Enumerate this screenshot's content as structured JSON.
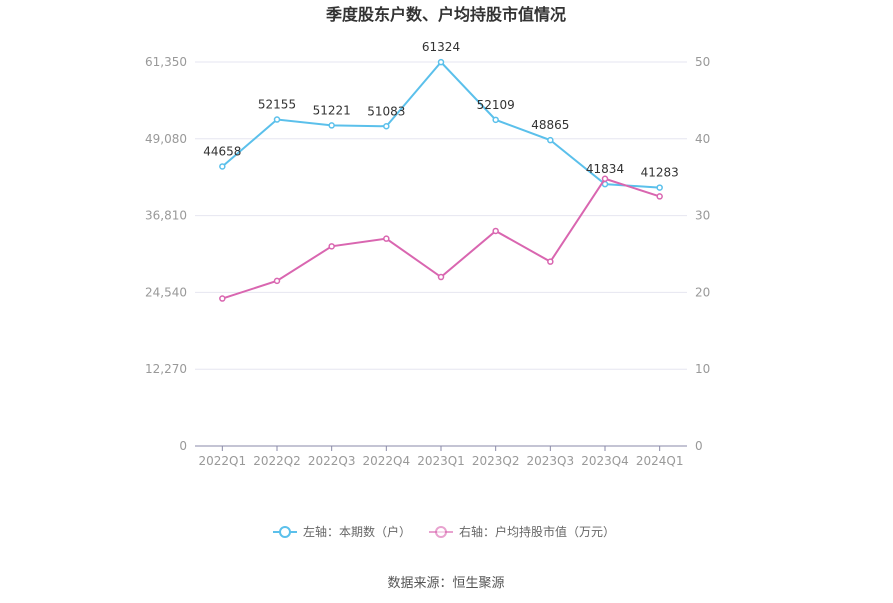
{
  "chart_data": {
    "type": "line",
    "title": "季度股东户数、户均持股市值情况",
    "categories": [
      "2022Q1",
      "2022Q2",
      "2022Q3",
      "2022Q4",
      "2023Q1",
      "2023Q2",
      "2023Q3",
      "2023Q4",
      "2024Q1"
    ],
    "series": [
      {
        "name": "左轴：本期数（户）",
        "axis": "left",
        "color": "#5bc0eb",
        "values": [
          44658,
          52155,
          51221,
          51083,
          61324,
          52109,
          48865,
          41834,
          41283
        ],
        "labels": [
          "44658",
          "52155",
          "51221",
          "51083",
          "61324",
          "52109",
          "48865",
          "41834",
          "41283"
        ]
      },
      {
        "name": "右轴：户均持股市值（万元）",
        "axis": "right",
        "color": "#d966b0",
        "values": [
          19.2,
          21.5,
          26.0,
          27.0,
          22.0,
          28.0,
          24.0,
          34.8,
          32.5
        ]
      }
    ],
    "y_left": {
      "min": 0,
      "max": 61350,
      "ticks": [
        0,
        12270,
        24540,
        36810,
        49080,
        61350
      ],
      "tick_labels": [
        "0",
        "12,270",
        "24,540",
        "36,810",
        "49,080",
        "61,350"
      ]
    },
    "y_right": {
      "min": 0,
      "max": 50,
      "ticks": [
        0,
        10,
        20,
        30,
        40,
        50
      ],
      "tick_labels": [
        "0",
        "10",
        "20",
        "30",
        "40",
        "50"
      ]
    },
    "grid": true,
    "legend_position": "bottom"
  },
  "source_text": "数据来源：恒生聚源"
}
